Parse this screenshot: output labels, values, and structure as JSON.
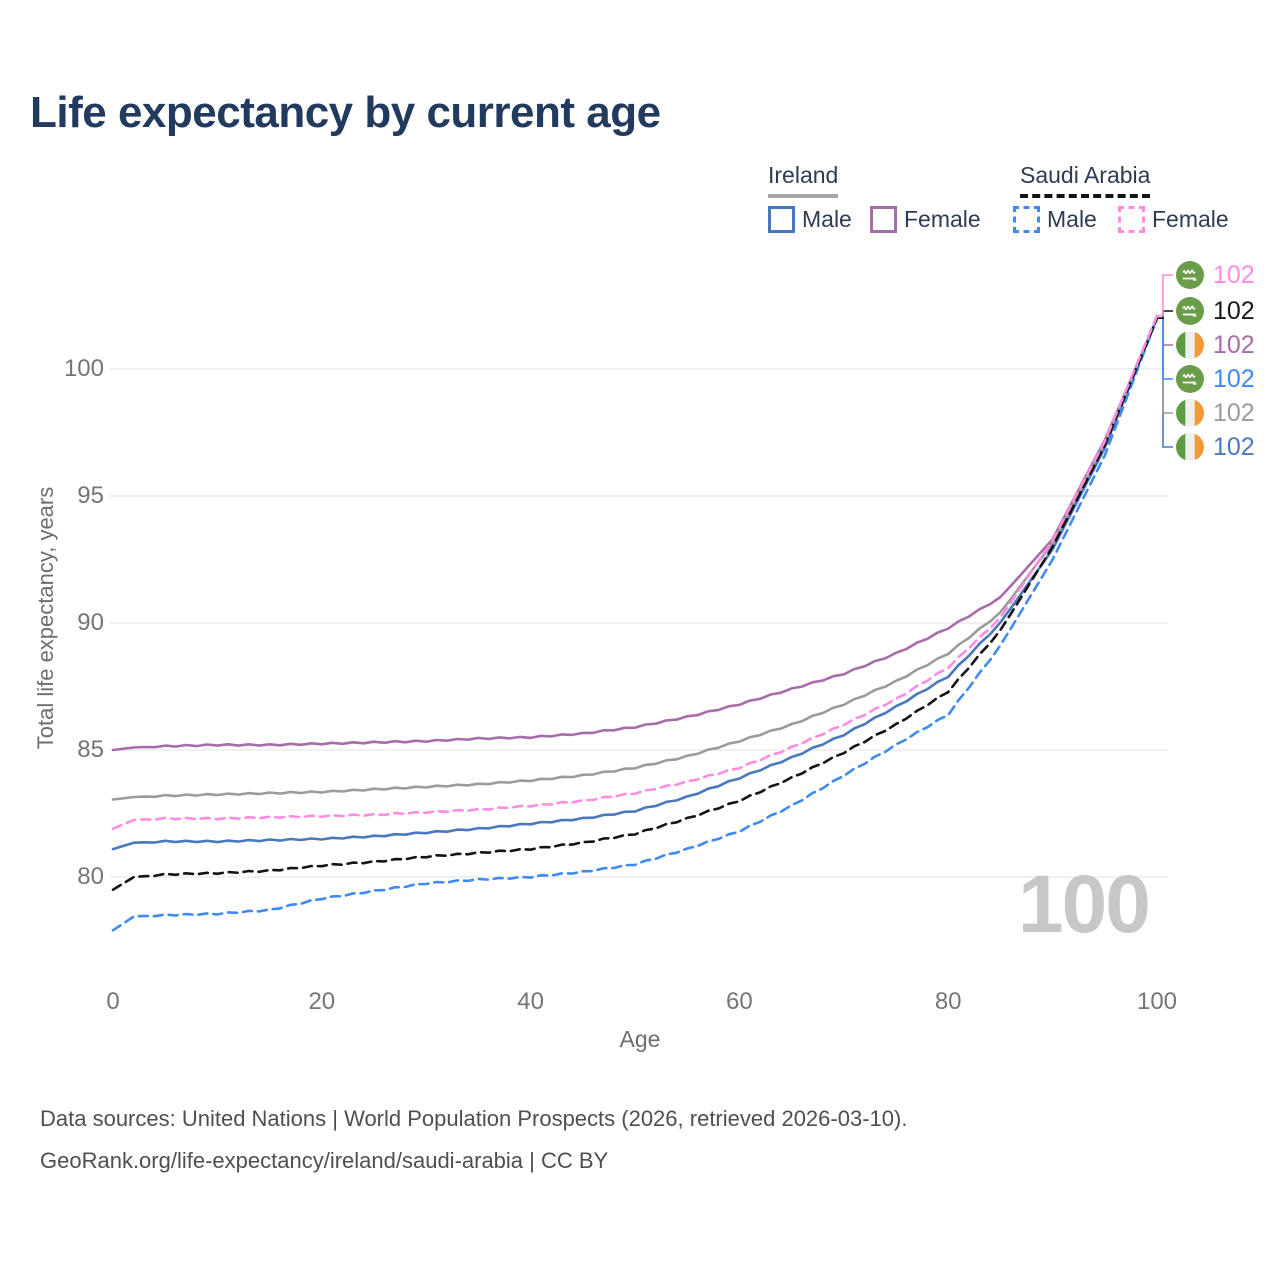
{
  "title": "Life expectancy by current age",
  "legend": {
    "groups": [
      {
        "label": "Ireland",
        "line_style": "solid",
        "underline_color": "#a6a6a6",
        "items": [
          {
            "label": "Male",
            "color": "#4a78bd"
          },
          {
            "label": "Female",
            "color": "#a86cab"
          }
        ]
      },
      {
        "label": "Saudi Arabia",
        "line_style": "dashed",
        "underline_color": "#141414",
        "items": [
          {
            "label": "Male",
            "color": "#3f8af2"
          },
          {
            "label": "Female",
            "color": "#ff8ce1"
          }
        ]
      }
    ]
  },
  "watermark": "100",
  "footer": {
    "line1": "Data sources: United Nations | World Population Prospects (2026, retrieved 2026-03-10).",
    "line2": "GeoRank.org/life-expectancy/ireland/saudi-arabia | CC BY"
  },
  "chart_data": {
    "type": "line",
    "title": "Life expectancy by current age",
    "xlabel": "Age",
    "ylabel": "Total life expectancy, years",
    "xlim": [
      0,
      100
    ],
    "ylim": [
      77.5,
      102.5
    ],
    "xticks": [
      0,
      20,
      40,
      60,
      80,
      100
    ],
    "yticks": [
      80,
      85,
      90,
      95,
      100
    ],
    "grid": "horizontal",
    "legend_position": "top-right",
    "x": [
      0,
      2,
      5,
      10,
      15,
      20,
      25,
      30,
      35,
      40,
      45,
      50,
      55,
      60,
      65,
      70,
      75,
      80,
      85,
      90,
      95,
      100
    ],
    "series": [
      {
        "name": "Ireland Male",
        "country": "Ireland",
        "sex": "Male",
        "color": "#4a78bd",
        "dash": "solid",
        "end_label_row": 5,
        "values": [
          81.1,
          81.35,
          81.4,
          81.4,
          81.45,
          81.5,
          81.6,
          81.75,
          81.9,
          82.1,
          82.3,
          82.6,
          83.15,
          83.9,
          84.7,
          85.6,
          86.7,
          87.9,
          90.0,
          92.9,
          96.9,
          102.0
        ]
      },
      {
        "name": "Ireland Female",
        "country": "Ireland",
        "sex": "Female",
        "color": "#a86cab",
        "dash": "solid",
        "end_label_row": 2,
        "values": [
          85.0,
          85.1,
          85.15,
          85.2,
          85.2,
          85.25,
          85.3,
          85.35,
          85.45,
          85.5,
          85.65,
          85.9,
          86.3,
          86.8,
          87.4,
          88.0,
          88.8,
          89.8,
          91.0,
          93.3,
          97.2,
          102.0
        ]
      },
      {
        "name": "Ireland Total",
        "country": "Ireland",
        "sex": "Both",
        "color": "#9b9b9b",
        "dash": "solid",
        "end_label_row": 4,
        "values": [
          83.05,
          83.15,
          83.2,
          83.25,
          83.3,
          83.35,
          83.45,
          83.55,
          83.65,
          83.8,
          84.0,
          84.3,
          84.75,
          85.35,
          86.0,
          86.8,
          87.7,
          88.8,
          90.4,
          93.15,
          97.1,
          102.0
        ]
      },
      {
        "name": "Saudi Arabia Male",
        "country": "Saudi Arabia",
        "sex": "Male",
        "color": "#3f8af2",
        "dash": "dashed",
        "end_label_row": 3,
        "values": [
          77.9,
          78.45,
          78.5,
          78.55,
          78.7,
          79.15,
          79.45,
          79.75,
          79.9,
          80.0,
          80.2,
          80.5,
          81.1,
          81.8,
          82.8,
          84.0,
          85.2,
          86.4,
          89.1,
          92.5,
          96.6,
          102.0
        ]
      },
      {
        "name": "Saudi Arabia Total",
        "country": "Saudi Arabia",
        "sex": "Both",
        "color": "#141414",
        "dash": "dashed",
        "end_label_row": 1,
        "values": [
          79.5,
          80.0,
          80.1,
          80.15,
          80.25,
          80.45,
          80.6,
          80.8,
          80.95,
          81.1,
          81.35,
          81.7,
          82.3,
          83.0,
          83.9,
          84.9,
          86.0,
          87.3,
          89.7,
          93.0,
          97.0,
          102.0
        ]
      },
      {
        "name": "Saudi Arabia Female",
        "country": "Saudi Arabia",
        "sex": "Female",
        "color": "#ff8ce1",
        "dash": "dashed",
        "end_label_row": 0,
        "values": [
          81.9,
          82.25,
          82.3,
          82.3,
          82.35,
          82.4,
          82.45,
          82.55,
          82.65,
          82.8,
          83.0,
          83.3,
          83.75,
          84.3,
          85.1,
          86.0,
          87.0,
          88.25,
          90.2,
          93.25,
          97.15,
          102.1
        ]
      }
    ],
    "end_labels": [
      {
        "value": "102",
        "color": "#ff8ce1",
        "country": "Saudi Arabia",
        "series": "Saudi Arabia Female"
      },
      {
        "value": "102",
        "color": "#1a1a1a",
        "country": "Saudi Arabia",
        "series": "Saudi Arabia Total"
      },
      {
        "value": "102",
        "color": "#a86cab",
        "country": "Ireland",
        "series": "Ireland Female"
      },
      {
        "value": "102",
        "color": "#3f8af2",
        "country": "Saudi Arabia",
        "series": "Saudi Arabia Male"
      },
      {
        "value": "102",
        "color": "#9b9b9b",
        "country": "Ireland",
        "series": "Ireland Total"
      },
      {
        "value": "102",
        "color": "#4a78bd",
        "country": "Ireland",
        "series": "Ireland Male"
      }
    ]
  }
}
